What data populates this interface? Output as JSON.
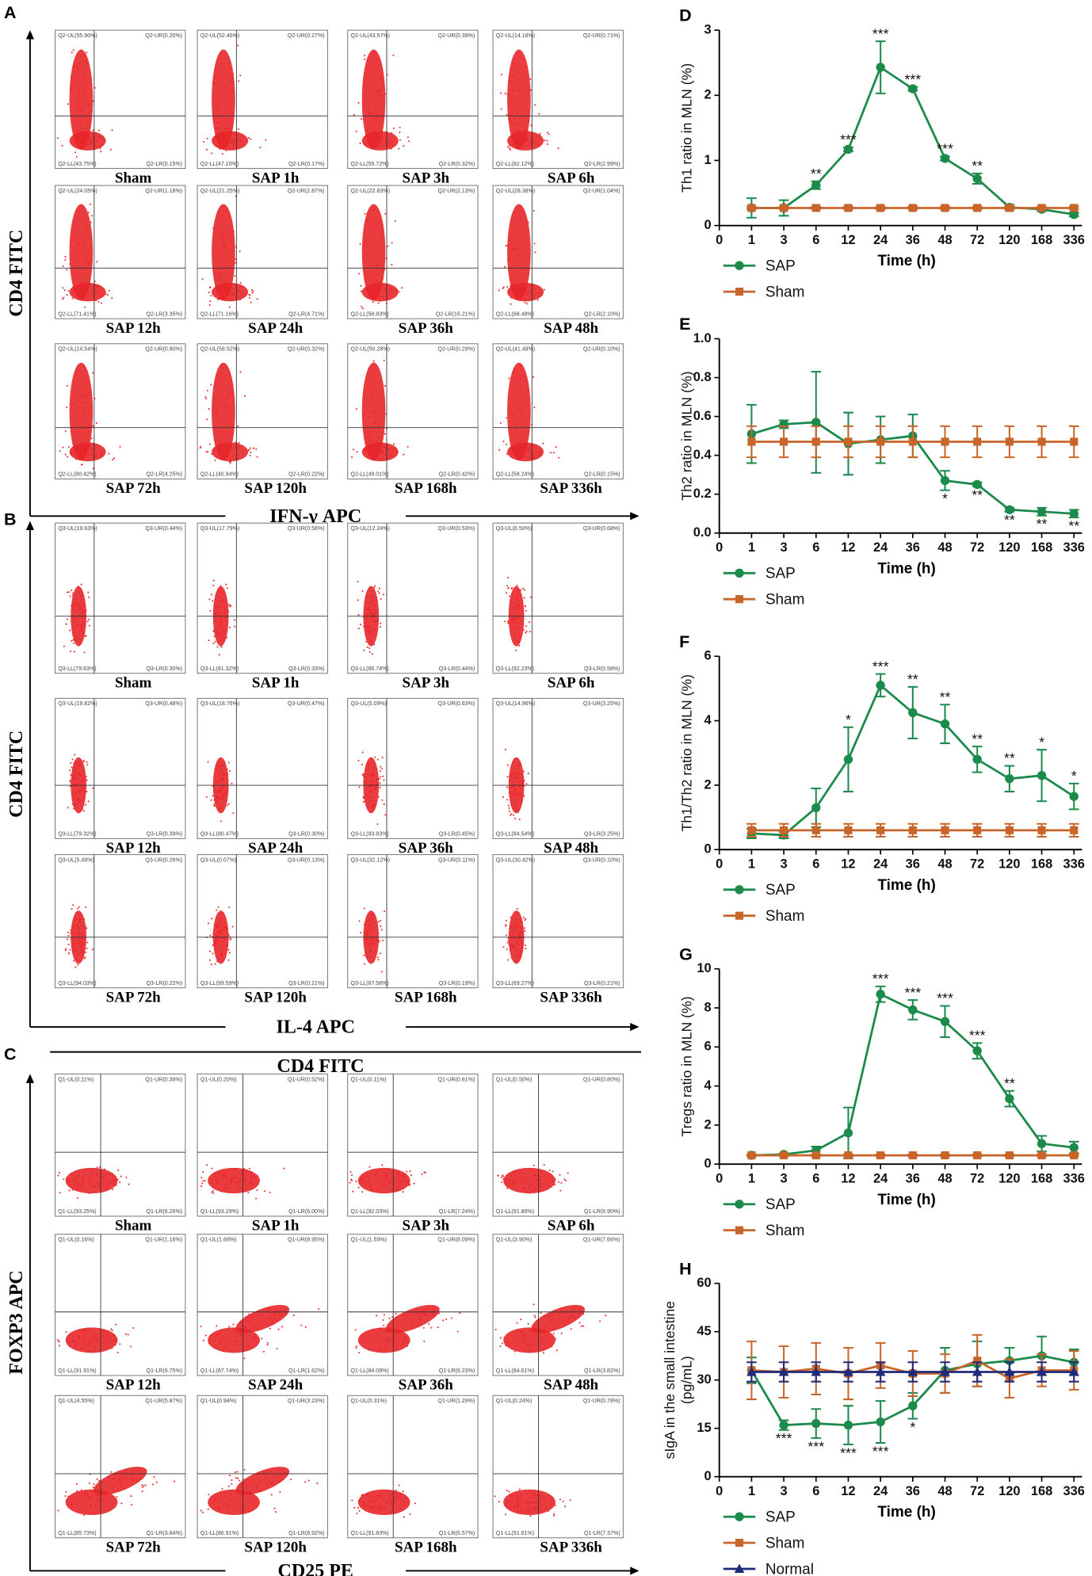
{
  "panels": [
    {
      "letter": "A",
      "xlabel": "IFN-γ APC",
      "ylabel": "CD4 FITC",
      "plots": [
        {
          "name": "Sham",
          "q": [
            "Q2-UL(55.90%)",
            "Q2-UR(0.20%)",
            "Q2-LL(43.75%)",
            "Q2-LR(0.15%)"
          ]
        },
        {
          "name": "SAP 1h",
          "q": [
            "Q2-UL(52.46%)",
            "Q2-UR(0.27%)",
            "Q2-LL(47.10%)",
            "Q2-LR(0.17%)"
          ]
        },
        {
          "name": "SAP 3h",
          "q": [
            "Q2-UL(43.57%)",
            "Q2-UR(0.39%)",
            "Q2-LL(55.72%)",
            "Q2-LR(0.32%)"
          ]
        },
        {
          "name": "SAP 6h",
          "q": [
            "Q2-UL(14.18%)",
            "Q2-UR(0.71%)",
            "Q2-LL(82.12%)",
            "Q2-LR(2.99%)"
          ]
        },
        {
          "name": "SAP 12h",
          "q": [
            "Q2-UL(24.05%)",
            "Q2-UR(1.18%)",
            "Q2-LL(71.41%)",
            "Q2-LR(3.35%)"
          ]
        },
        {
          "name": "SAP 24h",
          "q": [
            "Q2-UL(21.25%)",
            "Q2-UR(2.87%)",
            "Q2-LL(71.16%)",
            "Q2-LR(4.71%)"
          ]
        },
        {
          "name": "SAP 36h",
          "q": [
            "Q2-UL(22.83%)",
            "Q2-UR(2.13%)",
            "Q2-LL(58.83%)",
            "Q2-LR(16.21%)"
          ]
        },
        {
          "name": "SAP 48h",
          "q": [
            "Q2-UL(28.38%)",
            "Q2-UR(1.04%)",
            "Q2-LL(68.48%)",
            "Q2-LR(2.10%)"
          ]
        },
        {
          "name": "SAP 72h",
          "q": [
            "Q2-UL(14.54%)",
            "Q2-UR(0.80%)",
            "Q2-LL(80.42%)",
            "Q2-LR(4.25%)"
          ]
        },
        {
          "name": "SAP 120h",
          "q": [
            "Q2-UL(58.52%)",
            "Q2-UR(0.32%)",
            "Q2-LL(40.94%)",
            "Q2-LR(0.22%)"
          ]
        },
        {
          "name": "SAP 168h",
          "q": [
            "Q2-UL(50.28%)",
            "Q2-UR(0.29%)",
            "Q2-LL(49.01%)",
            "Q2-LR(0.42%)"
          ]
        },
        {
          "name": "SAP 336h",
          "q": [
            "Q2-UL(41.49%)",
            "Q2-UR(0.10%)",
            "Q2-LL(58.24%)",
            "Q2-LR(0.15%)"
          ]
        }
      ]
    },
    {
      "letter": "B",
      "xlabel": "IL-4 APC",
      "ylabel": "CD4 FITC",
      "plots": [
        {
          "name": "Sham",
          "q": [
            "Q3-UL(19.63%)",
            "Q3-UR(0.44%)",
            "Q3-LL(79.63%)",
            "Q3-LR(0.30%)"
          ]
        },
        {
          "name": "SAP 1h",
          "q": [
            "Q3-UL(17.79%)",
            "Q3-UR(0.56%)",
            "Q3-LL(81.32%)",
            "Q3-LR(0.33%)"
          ]
        },
        {
          "name": "SAP 3h",
          "q": [
            "Q3-UL(12.24%)",
            "Q3-UR(0.53%)",
            "Q3-LL(86.74%)",
            "Q3-LR(0.44%)"
          ]
        },
        {
          "name": "SAP 6h",
          "q": [
            "Q3-UL(6.50%)",
            "Q3-UR(0.68%)",
            "Q3-LL(92.23%)",
            "Q3-LR(0.58%)"
          ]
        },
        {
          "name": "SAP 12h",
          "q": [
            "Q3-UL(19.82%)",
            "Q3-UR(0.48%)",
            "Q3-LL(79.32%)",
            "Q3-LR(0.39%)"
          ]
        },
        {
          "name": "SAP 24h",
          "q": [
            "Q3-UL(18.76%)",
            "Q3-UR(0.47%)",
            "Q3-LL(80.47%)",
            "Q3-LR(0.30%)"
          ]
        },
        {
          "name": "SAP 36h",
          "q": [
            "Q3-UL(5.09%)",
            "Q3-UR(0.63%)",
            "Q3-LL(93.83%)",
            "Q3-LR(0.45%)"
          ]
        },
        {
          "name": "SAP 48h",
          "q": [
            "Q3-UL(14.96%)",
            "Q3-UR(3.25%)",
            "Q3-LL(84.54%)",
            "Q3-LR(3.25%)"
          ]
        },
        {
          "name": "SAP 72h",
          "q": [
            "Q3-UL(5.49%)",
            "Q3-UR(0.26%)",
            "Q3-LL(94.03%)",
            "Q3-LR(0.22%)"
          ]
        },
        {
          "name": "SAP 120h",
          "q": [
            "Q3-UL(0.07%)",
            "Q3-UR(0.13%)",
            "Q3-LL(99.59%)",
            "Q3-LR(0.21%)"
          ]
        },
        {
          "name": "SAP 168h",
          "q": [
            "Q3-UL(32.12%)",
            "Q3-UR(0.11%)",
            "Q3-LL(67.58%)",
            "Q3-LR(0.19%)"
          ]
        },
        {
          "name": "SAP 336h",
          "q": [
            "Q3-UL(30.42%)",
            "Q3-UR(0.10%)",
            "Q3-LL(69.27%)",
            "Q3-LR(0.21%)"
          ]
        }
      ]
    },
    {
      "letter": "C",
      "header": "CD4 FITC",
      "xlabel": "CD25 PE",
      "ylabel": "FOXP3 APC",
      "plots": [
        {
          "name": "Sham",
          "q": [
            "Q1-UL(0.11%)",
            "Q1-UR(0.39%)",
            "Q1-LL(93.25%)",
            "Q1-LR(6.26%)"
          ]
        },
        {
          "name": "SAP 1h",
          "q": [
            "Q1-UL(0.20%)",
            "Q1-UR(0.52%)",
            "Q1-LL(93.29%)",
            "Q1-LR(6.00%)"
          ]
        },
        {
          "name": "SAP 3h",
          "q": [
            "Q1-UL(0.11%)",
            "Q1-UR(0.61%)",
            "Q1-LL(92.03%)",
            "Q1-LR(7.24%)"
          ]
        },
        {
          "name": "SAP 6h",
          "q": [
            "Q1-UL(0.50%)",
            "Q1-UR(0.80%)",
            "Q1-LL(91.80%)",
            "Q1-LR(6.90%)"
          ]
        },
        {
          "name": "SAP 12h",
          "q": [
            "Q1-UL(0.16%)",
            "Q1-UR(1.18%)",
            "Q1-LL(91.91%)",
            "Q1-LR(6.75%)"
          ]
        },
        {
          "name": "SAP 24h",
          "q": [
            "Q1-UL(1.68%)",
            "Q1-UR(8.95%)",
            "Q1-LL(87.74%)",
            "Q1-LR(1.62%)"
          ]
        },
        {
          "name": "SAP 36h",
          "q": [
            "Q1-UL(1.59%)",
            "Q1-UR(8.09%)",
            "Q1-LL(84.09%)",
            "Q1-LR(6.23%)"
          ]
        },
        {
          "name": "SAP 48h",
          "q": [
            "Q1-UL(3.90%)",
            "Q1-UR(7.66%)",
            "Q1-LL(84.61%)",
            "Q1-LR(3.82%)"
          ]
        },
        {
          "name": "SAP 72h",
          "q": [
            "Q1-UL(4.55%)",
            "Q1-UR(5.87%)",
            "Q1-LL(85.73%)",
            "Q1-LR(3.84%)"
          ]
        },
        {
          "name": "SAP 120h",
          "q": [
            "Q1-UL(0.94%)",
            "Q1-UR(3.23%)",
            "Q1-LL(86.91%)",
            "Q1-LR(8.92%)"
          ]
        },
        {
          "name": "SAP 168h",
          "q": [
            "Q1-UL(0.31%)",
            "Q1-UR(1.29%)",
            "Q1-LL(91.83%)",
            "Q1-LR(6.57%)"
          ]
        },
        {
          "name": "SAP 336h",
          "q": [
            "Q1-UL(0.24%)",
            "Q1-UR(0.78%)",
            "Q1-LL(91.61%)",
            "Q1-LR(7.37%)"
          ]
        }
      ]
    }
  ],
  "chart_data": [
    {
      "type": "line",
      "panel": "D",
      "ylabel": [
        "Th1 ratio in MLN (%)"
      ],
      "xlabel": "Time (h)",
      "categories": [
        "0",
        "1",
        "3",
        "6",
        "12",
        "24",
        "36",
        "48",
        "72",
        "120",
        "168",
        "336"
      ],
      "ylim": [
        0,
        3
      ],
      "yticks": [
        0,
        1,
        2,
        3
      ],
      "significance_position": "above",
      "significance": [
        null,
        null,
        null,
        "**",
        "***",
        "***",
        "***",
        "***",
        "**",
        null,
        null,
        null
      ],
      "series": [
        {
          "name": "SAP",
          "color": "#1b8a4b",
          "marker": "circle",
          "values": [
            null,
            0.27,
            0.27,
            0.62,
            1.17,
            2.43,
            2.1,
            1.03,
            0.72,
            0.28,
            0.25,
            0.17
          ],
          "errors": [
            null,
            0.15,
            0.12,
            0.06,
            0.03,
            0.4,
            0.03,
            0.03,
            0.08,
            0.04,
            0.03,
            0.03
          ]
        },
        {
          "name": "Sham",
          "color": "#c8652a",
          "marker": "square",
          "values": [
            null,
            0.27,
            0.27,
            0.27,
            0.27,
            0.27,
            0.27,
            0.27,
            0.27,
            0.27,
            0.27,
            0.27
          ],
          "errors": [
            null,
            0.02,
            0.02,
            0.02,
            0.02,
            0.02,
            0.02,
            0.02,
            0.02,
            0.02,
            0.02,
            0.02
          ]
        }
      ]
    },
    {
      "type": "line",
      "panel": "E",
      "ylabel": [
        "Th2 ratio in MLN (%)"
      ],
      "xlabel": "Time (h)",
      "categories": [
        "0",
        "1",
        "3",
        "6",
        "12",
        "24",
        "36",
        "48",
        "72",
        "120",
        "168",
        "336"
      ],
      "ylim": [
        0,
        1
      ],
      "yticks": [
        {
          "value": 0,
          "label": "0.0"
        },
        0.2,
        0.4,
        0.6,
        0.8,
        {
          "value": 1,
          "label": "1.0"
        }
      ],
      "significance_position": "below",
      "significance": [
        null,
        null,
        null,
        null,
        null,
        null,
        null,
        "*",
        "**",
        "**",
        "**",
        "**"
      ],
      "series": [
        {
          "name": "SAP",
          "color": "#1b8a4b",
          "marker": "circle",
          "values": [
            null,
            0.51,
            0.56,
            0.57,
            0.46,
            0.48,
            0.5,
            0.27,
            0.25,
            0.12,
            0.11,
            0.1
          ],
          "errors": [
            null,
            0.15,
            0.02,
            0.26,
            0.16,
            0.12,
            0.11,
            0.05,
            0.01,
            0.01,
            0.02,
            0.02
          ]
        },
        {
          "name": "Sham",
          "color": "#c8652a",
          "marker": "square",
          "values": [
            null,
            0.47,
            0.47,
            0.47,
            0.47,
            0.47,
            0.47,
            0.47,
            0.47,
            0.47,
            0.47,
            0.47
          ],
          "errors": [
            null,
            0.08,
            0.08,
            0.08,
            0.08,
            0.08,
            0.08,
            0.08,
            0.08,
            0.08,
            0.08,
            0.08
          ]
        }
      ]
    },
    {
      "type": "line",
      "panel": "F",
      "ylabel": [
        "Th1/Th2 ratio in MLN (%)"
      ],
      "xlabel": "Time (h)",
      "categories": [
        "0",
        "1",
        "3",
        "6",
        "12",
        "24",
        "36",
        "48",
        "72",
        "120",
        "168",
        "336"
      ],
      "ylim": [
        0,
        6
      ],
      "yticks": [
        0,
        2,
        4,
        6
      ],
      "significance_position": "above",
      "significance": [
        null,
        null,
        null,
        null,
        "*",
        "***",
        "**",
        "**",
        "**",
        "**",
        "*",
        "*"
      ],
      "series": [
        {
          "name": "SAP",
          "color": "#1b8a4b",
          "marker": "circle",
          "values": [
            null,
            0.5,
            0.45,
            1.3,
            2.8,
            5.1,
            4.25,
            3.9,
            2.8,
            2.2,
            2.3,
            1.65
          ],
          "errors": [
            null,
            0.15,
            0.1,
            0.6,
            1.0,
            0.35,
            0.8,
            0.6,
            0.4,
            0.4,
            0.8,
            0.4
          ]
        },
        {
          "name": "Sham",
          "color": "#c8652a",
          "marker": "square",
          "values": [
            null,
            0.6,
            0.6,
            0.6,
            0.6,
            0.6,
            0.6,
            0.6,
            0.6,
            0.6,
            0.6,
            0.6
          ],
          "errors": [
            null,
            0.2,
            0.2,
            0.2,
            0.2,
            0.2,
            0.2,
            0.2,
            0.2,
            0.2,
            0.2,
            0.2
          ]
        }
      ]
    },
    {
      "type": "line",
      "panel": "G",
      "ylabel": [
        "Tregs ratio in MLN (%)"
      ],
      "xlabel": "Time (h)",
      "categories": [
        "0",
        "1",
        "3",
        "6",
        "12",
        "24",
        "36",
        "48",
        "72",
        "120",
        "168",
        "336"
      ],
      "ylim": [
        0,
        10
      ],
      "yticks": [
        0,
        2,
        4,
        6,
        8,
        10
      ],
      "significance_position": "above",
      "significance": [
        null,
        null,
        null,
        null,
        null,
        "***",
        "***",
        "***",
        "***",
        "**",
        null,
        null
      ],
      "series": [
        {
          "name": "SAP",
          "color": "#1b8a4b",
          "marker": "circle",
          "values": [
            null,
            0.45,
            0.5,
            0.7,
            1.6,
            8.7,
            7.9,
            7.3,
            5.8,
            3.35,
            1.05,
            0.85
          ],
          "errors": [
            null,
            0.05,
            0.05,
            0.2,
            1.3,
            0.4,
            0.5,
            0.8,
            0.4,
            0.4,
            0.4,
            0.3
          ]
        },
        {
          "name": "Sham",
          "color": "#c8652a",
          "marker": "square",
          "values": [
            null,
            0.45,
            0.45,
            0.45,
            0.45,
            0.45,
            0.45,
            0.45,
            0.45,
            0.45,
            0.45,
            0.45
          ],
          "errors": [
            null,
            0.05,
            0.05,
            0.05,
            0.05,
            0.05,
            0.05,
            0.05,
            0.05,
            0.05,
            0.05,
            0.05
          ]
        }
      ]
    },
    {
      "type": "line",
      "panel": "H",
      "ylabel": [
        "sIgA in the small intestine",
        "(pg/mL)"
      ],
      "xlabel": "Time (h)",
      "categories": [
        "0",
        "1",
        "3",
        "6",
        "12",
        "24",
        "36",
        "48",
        "72",
        "120",
        "168",
        "336"
      ],
      "ylim": [
        0,
        60
      ],
      "yticks": [
        0,
        15,
        30,
        45,
        60
      ],
      "significance_position": "below",
      "significance": [
        null,
        null,
        "***",
        "***",
        "***",
        "***",
        "*",
        null,
        null,
        null,
        null,
        null
      ],
      "series": [
        {
          "name": "SAP",
          "color": "#1b8a4b",
          "marker": "circle",
          "values": [
            null,
            33,
            16,
            16.5,
            16,
            17,
            22,
            33,
            35,
            36,
            37.5,
            35.5
          ],
          "errors": [
            null,
            4,
            1.5,
            4.5,
            6,
            6.5,
            4,
            7,
            7,
            4,
            6,
            4
          ]
        },
        {
          "name": "Sham",
          "color": "#c8652a",
          "marker": "square",
          "values": [
            null,
            33,
            32.5,
            33.5,
            32,
            34.5,
            32,
            32,
            36,
            30.5,
            33,
            33
          ],
          "errors": [
            null,
            9,
            8,
            8,
            8,
            7,
            7,
            6,
            8,
            6,
            5,
            6
          ]
        },
        {
          "name": "Normal",
          "color": "#1f2a7a",
          "marker": "triangle",
          "values": [
            null,
            32.5,
            32.5,
            32.5,
            32.5,
            32.5,
            32.5,
            32.5,
            32.5,
            32.5,
            32.5,
            32.5
          ],
          "errors": [
            null,
            3,
            3,
            3,
            3,
            3,
            3,
            3,
            3,
            3,
            3,
            3
          ]
        }
      ]
    }
  ]
}
